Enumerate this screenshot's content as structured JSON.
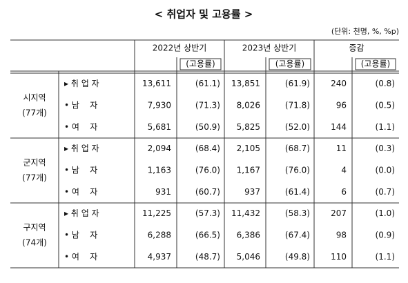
{
  "title": "< 취업자 및 고용률 >",
  "unit": "(단위: 천명, %, %p)",
  "table": {
    "headers": [
      "2022년 상반기",
      "2023년 상반기",
      "증감"
    ],
    "subheaders": [
      "(고용률)",
      "(고용률)",
      "(고용률)"
    ],
    "groups": [
      {
        "name": "시지역",
        "count": "(77개)",
        "rows": [
          {
            "label": "▸ 취 업 자",
            "cells": [
              "13,611",
              "(61.1)",
              "13,851",
              "(61.9)",
              "240",
              "(0.8)"
            ]
          },
          {
            "label": "• 남    자",
            "cells": [
              "7,930",
              "(71.3)",
              "8,026",
              "(71.8)",
              "96",
              "(0.5)"
            ]
          },
          {
            "label": "• 여    자",
            "cells": [
              "5,681",
              "(50.9)",
              "5,825",
              "(52.0)",
              "144",
              "(1.1)"
            ]
          }
        ]
      },
      {
        "name": "군지역",
        "count": "(77개)",
        "rows": [
          {
            "label": "▸ 취 업 자",
            "cells": [
              "2,094",
              "(68.4)",
              "2,105",
              "(68.7)",
              "11",
              "(0.3)"
            ]
          },
          {
            "label": "• 남    자",
            "cells": [
              "1,163",
              "(76.0)",
              "1,167",
              "(76.0)",
              "4",
              "(0.0)"
            ]
          },
          {
            "label": "• 여    자",
            "cells": [
              "931",
              "(60.7)",
              "937",
              "(61.4)",
              "6",
              "(0.7)"
            ]
          }
        ]
      },
      {
        "name": "구지역",
        "count": "(74개)",
        "rows": [
          {
            "label": "▸ 취 업 자",
            "cells": [
              "11,225",
              "(57.3)",
              "11,432",
              "(58.3)",
              "207",
              "(1.0)"
            ]
          },
          {
            "label": "• 남    자",
            "cells": [
              "6,288",
              "(66.5)",
              "6,386",
              "(67.4)",
              "98",
              "(0.9)"
            ]
          },
          {
            "label": "• 여    자",
            "cells": [
              "4,937",
              "(48.7)",
              "5,046",
              "(49.8)",
              "110",
              "(1.1)"
            ]
          }
        ]
      }
    ]
  }
}
